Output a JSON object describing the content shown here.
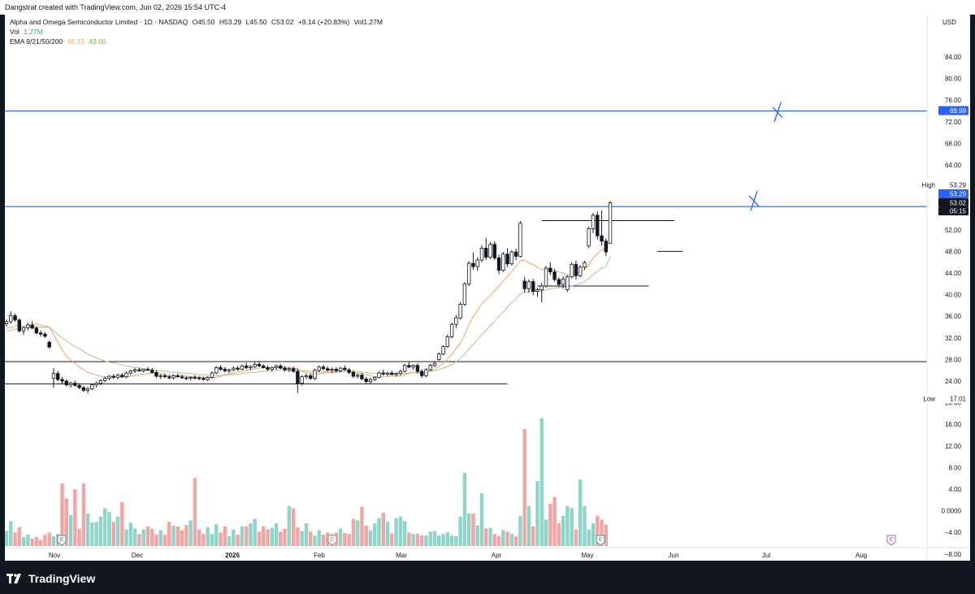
{
  "header": {
    "credit": "Dangstrat created with TradingView.com, Jun 02, 2026 15:54 UTC-4"
  },
  "legend": {
    "symbol": "Alpha and Omega Semiconductor Limited · 1D · NASDAQ",
    "open": "O45.50",
    "high": "H53.29",
    "low": "L45.50",
    "close": "C53.02",
    "change": "+9.14 (+20.83%)",
    "volume": "Vol1.27M",
    "vol_label": "Vol",
    "vol_value": "1.27M",
    "ema_label": "EMA 9/21/50/200",
    "ema9": "46.13",
    "ema21": "43.00"
  },
  "footer": {
    "brand": "TradingView"
  },
  "colors": {
    "up_volume": "#8fd4c8",
    "down_volume": "#f2a5a5",
    "level_line": "#2962ff",
    "ema9": "#f4a261",
    "ema21": "#a8c98c",
    "candle": "#131722"
  },
  "chart_data": {
    "type": "candlestick",
    "symbol": "AOSL",
    "interval": "1D",
    "currency": "USD",
    "price_axis_ticks": [
      "84.00",
      "80.00",
      "76.00",
      "72.00",
      "68.00",
      "64.00",
      "60.00",
      "56.00",
      "52.00",
      "48.00",
      "44.00",
      "40.00",
      "36.00",
      "32.00",
      "28.00",
      "24.00",
      "20.00",
      "16.00",
      "12.00",
      "8.00",
      "4.00",
      "0.0000",
      "−4.00",
      "−8.00"
    ],
    "ylim": [
      -10,
      86
    ],
    "x_ticks": [
      "Nov",
      "Dec",
      "2026",
      "Feb",
      "Mar",
      "Apr",
      "May",
      "Jun",
      "Jul",
      "Aug"
    ],
    "price_labels": {
      "level_upper": "69.99",
      "high_label": "High",
      "high_value": "53.29",
      "level_lower": "53.29",
      "last_price": "53.02",
      "countdown": "05:15",
      "low_label": "Low",
      "low_value": "17.01"
    },
    "horizontal_levels": [
      {
        "price": 69.99,
        "color": "blue"
      },
      {
        "price": 52.3,
        "color": "blue"
      },
      {
        "price": 23.6,
        "color": "black"
      },
      {
        "price": 19.5,
        "color": "black",
        "segment": "Oct-Mar"
      },
      {
        "price": 49.7,
        "color": "black",
        "segment": "May-Jun"
      },
      {
        "price": 44.0,
        "color": "black",
        "segment": "late May"
      },
      {
        "price": 37.6,
        "color": "black",
        "segment": "May-Jun"
      }
    ],
    "candles": [
      [
        30.6,
        31.4,
        30.1,
        31.0
      ],
      [
        31.0,
        32.9,
        30.6,
        32.1
      ],
      [
        32.1,
        32.5,
        31.0,
        31.3
      ],
      [
        31.3,
        31.6,
        29.0,
        29.3
      ],
      [
        29.3,
        30.1,
        28.6,
        29.9
      ],
      [
        29.9,
        30.8,
        29.4,
        30.4
      ],
      [
        30.4,
        31.1,
        29.6,
        29.8
      ],
      [
        29.8,
        30.2,
        28.6,
        28.9
      ],
      [
        28.9,
        29.4,
        28.3,
        28.7
      ],
      [
        28.7,
        29.1,
        28.0,
        28.3
      ],
      [
        27.2,
        27.5,
        26.0,
        26.3
      ],
      [
        20.5,
        22.4,
        18.8,
        21.4
      ],
      [
        21.4,
        21.9,
        20.0,
        20.3
      ],
      [
        20.3,
        20.8,
        19.5,
        20.0
      ],
      [
        20.0,
        20.3,
        19.0,
        19.3
      ],
      [
        19.3,
        19.9,
        18.8,
        19.6
      ],
      [
        19.6,
        20.1,
        19.0,
        19.2
      ],
      [
        19.2,
        19.6,
        18.5,
        18.8
      ],
      [
        18.8,
        19.1,
        18.0,
        18.3
      ],
      [
        18.3,
        18.9,
        17.8,
        18.6
      ],
      [
        18.6,
        19.5,
        18.3,
        19.3
      ],
      [
        19.3,
        19.9,
        18.8,
        19.6
      ],
      [
        19.6,
        20.4,
        19.2,
        20.1
      ],
      [
        20.1,
        20.8,
        19.8,
        20.5
      ],
      [
        20.5,
        21.1,
        20.2,
        20.9
      ],
      [
        20.9,
        21.3,
        20.4,
        20.7
      ],
      [
        20.7,
        21.4,
        20.3,
        21.1
      ],
      [
        21.1,
        21.5,
        20.6,
        20.8
      ],
      [
        20.8,
        21.8,
        20.5,
        21.5
      ],
      [
        21.5,
        22.1,
        21.1,
        21.9
      ],
      [
        21.9,
        22.4,
        21.5,
        22.1
      ],
      [
        22.1,
        22.5,
        21.7,
        21.9
      ],
      [
        21.9,
        22.3,
        21.6,
        22.2
      ],
      [
        22.2,
        22.6,
        21.9,
        22.0
      ],
      [
        22.0,
        22.4,
        21.4,
        21.6
      ],
      [
        21.6,
        22.0,
        20.6,
        20.9
      ],
      [
        20.9,
        21.3,
        20.4,
        21.0
      ],
      [
        21.0,
        21.4,
        20.6,
        20.8
      ],
      [
        20.8,
        21.1,
        20.3,
        20.6
      ],
      [
        20.6,
        21.2,
        20.3,
        21.0
      ],
      [
        21.0,
        21.4,
        20.6,
        20.8
      ],
      [
        20.8,
        21.2,
        20.4,
        20.6
      ],
      [
        20.6,
        20.9,
        20.2,
        20.5
      ],
      [
        20.5,
        20.9,
        20.1,
        20.7
      ],
      [
        20.7,
        21.1,
        20.3,
        20.6
      ],
      [
        20.6,
        20.9,
        20.2,
        20.5
      ],
      [
        20.5,
        20.8,
        20.1,
        20.3
      ],
      [
        20.3,
        20.9,
        20.0,
        20.7
      ],
      [
        20.7,
        21.8,
        20.5,
        21.5
      ],
      [
        21.5,
        22.8,
        21.3,
        22.5
      ],
      [
        22.5,
        22.9,
        21.9,
        22.2
      ],
      [
        22.2,
        22.6,
        21.6,
        21.9
      ],
      [
        21.9,
        22.3,
        21.5,
        22.1
      ],
      [
        22.1,
        22.7,
        21.8,
        22.4
      ],
      [
        22.4,
        22.8,
        21.9,
        22.2
      ],
      [
        22.2,
        23.1,
        22.0,
        22.8
      ],
      [
        22.8,
        23.4,
        22.2,
        22.5
      ],
      [
        22.5,
        22.9,
        22.0,
        22.7
      ],
      [
        22.7,
        23.5,
        22.4,
        23.1
      ],
      [
        23.1,
        23.6,
        22.6,
        22.8
      ],
      [
        22.8,
        23.2,
        22.3,
        22.5
      ],
      [
        22.5,
        22.9,
        21.9,
        22.2
      ],
      [
        22.2,
        22.7,
        21.8,
        22.5
      ],
      [
        22.5,
        23.1,
        22.1,
        22.8
      ],
      [
        22.8,
        23.2,
        22.2,
        22.4
      ],
      [
        22.4,
        22.8,
        21.8,
        22.1
      ],
      [
        22.1,
        22.6,
        21.7,
        22.3
      ],
      [
        22.3,
        22.7,
        21.6,
        21.8
      ],
      [
        21.8,
        22.3,
        17.8,
        19.6
      ],
      [
        19.6,
        21.1,
        19.2,
        20.8
      ],
      [
        20.8,
        21.4,
        20.4,
        21.0
      ],
      [
        21.0,
        21.4,
        20.2,
        20.5
      ],
      [
        20.5,
        22.3,
        20.2,
        22.0
      ],
      [
        22.0,
        22.9,
        21.6,
        22.6
      ],
      [
        22.6,
        23.0,
        22.0,
        22.3
      ],
      [
        22.3,
        22.7,
        21.8,
        22.0
      ],
      [
        22.0,
        22.5,
        21.5,
        22.2
      ],
      [
        22.2,
        22.6,
        21.7,
        21.9
      ],
      [
        21.9,
        22.6,
        21.6,
        22.4
      ],
      [
        22.4,
        22.9,
        21.9,
        22.1
      ],
      [
        22.1,
        22.4,
        21.3,
        21.6
      ],
      [
        21.6,
        22.0,
        20.6,
        20.9
      ],
      [
        20.9,
        21.4,
        20.5,
        21.1
      ],
      [
        21.1,
        21.5,
        20.2,
        20.4
      ],
      [
        20.4,
        20.8,
        19.6,
        19.9
      ],
      [
        19.9,
        20.6,
        19.5,
        20.3
      ],
      [
        20.3,
        20.9,
        20.0,
        20.7
      ],
      [
        20.7,
        21.8,
        20.5,
        21.5
      ],
      [
        21.5,
        22.1,
        21.0,
        21.3
      ],
      [
        21.3,
        21.7,
        20.9,
        21.5
      ],
      [
        21.5,
        21.9,
        21.1,
        21.2
      ],
      [
        21.2,
        21.6,
        20.8,
        21.4
      ],
      [
        21.4,
        22.1,
        21.1,
        21.8
      ],
      [
        21.8,
        23.2,
        21.6,
        22.9
      ],
      [
        22.9,
        23.5,
        22.4,
        22.6
      ],
      [
        22.6,
        23.1,
        22.1,
        22.9
      ],
      [
        22.9,
        23.3,
        21.4,
        21.8
      ],
      [
        21.8,
        22.2,
        20.6,
        21.0
      ],
      [
        21.0,
        22.4,
        20.7,
        22.1
      ],
      [
        22.1,
        23.2,
        21.9,
        22.9
      ],
      [
        22.9,
        23.6,
        22.6,
        23.3
      ],
      [
        24.0,
        25.3,
        23.8,
        25.0
      ],
      [
        25.0,
        26.6,
        24.8,
        26.4
      ],
      [
        26.4,
        28.6,
        26.2,
        28.2
      ],
      [
        28.2,
        30.8,
        27.9,
        30.5
      ],
      [
        30.5,
        32.2,
        29.8,
        31.7
      ],
      [
        31.7,
        34.6,
        31.4,
        34.2
      ],
      [
        34.2,
        38.3,
        33.9,
        38.0
      ],
      [
        38.0,
        42.2,
        37.6,
        41.8
      ],
      [
        41.8,
        43.8,
        40.6,
        41.2
      ],
      [
        41.2,
        42.9,
        40.4,
        42.4
      ],
      [
        42.4,
        45.2,
        42.0,
        44.6
      ],
      [
        44.6,
        46.5,
        42.4,
        42.9
      ],
      [
        42.9,
        45.7,
        42.6,
        45.3
      ],
      [
        45.3,
        45.9,
        42.4,
        42.8
      ],
      [
        42.8,
        43.4,
        39.8,
        40.5
      ],
      [
        40.5,
        43.9,
        40.2,
        43.5
      ],
      [
        43.5,
        44.6,
        41.1,
        41.7
      ],
      [
        41.7,
        44.2,
        41.4,
        43.9
      ],
      [
        43.9,
        44.5,
        42.4,
        43.1
      ],
      [
        43.1,
        49.6,
        42.9,
        49.2
      ],
      [
        38.5,
        39.3,
        36.4,
        37.1
      ],
      [
        37.1,
        38.8,
        36.4,
        38.4
      ],
      [
        38.4,
        38.9,
        35.9,
        36.6
      ],
      [
        36.6,
        37.3,
        35.6,
        36.9
      ],
      [
        36.9,
        38.2,
        34.6,
        37.6
      ],
      [
        37.6,
        41.3,
        37.3,
        40.9
      ],
      [
        40.9,
        42.0,
        39.6,
        40.2
      ],
      [
        40.2,
        40.8,
        38.4,
        38.8
      ],
      [
        38.8,
        39.2,
        37.4,
        37.9
      ],
      [
        37.9,
        39.4,
        37.1,
        38.9
      ],
      [
        36.9,
        39.6,
        36.5,
        39.3
      ],
      [
        39.3,
        42.0,
        39.0,
        41.6
      ],
      [
        41.6,
        42.3,
        38.8,
        39.5
      ],
      [
        39.5,
        41.4,
        39.2,
        41.1
      ],
      [
        41.1,
        42.3,
        40.6,
        41.9
      ],
      [
        45.0,
        48.6,
        44.6,
        48.2
      ],
      [
        48.2,
        51.1,
        47.4,
        50.7
      ],
      [
        50.7,
        51.4,
        46.2,
        46.9
      ],
      [
        46.9,
        51.6,
        45.1,
        45.9
      ],
      [
        45.9,
        46.4,
        43.2,
        43.9
      ],
      [
        45.5,
        53.29,
        45.5,
        53.02
      ]
    ],
    "volume": [
      2.0,
      3.3,
      1.8,
      2.5,
      1.2,
      1.5,
      1.0,
      1.2,
      0.8,
      1.5,
      1.8,
      1.3,
      1.6,
      8.3,
      6.3,
      4.1,
      7.5,
      2.3,
      8.3,
      4.3,
      3.1,
      3.2,
      3.9,
      5.0,
      4.5,
      3.2,
      3.9,
      5.8,
      2.2,
      3.1,
      2.3,
      1.6,
      2.2,
      2.6,
      2.3,
      1.5,
      2.1,
      1.5,
      3.2,
      2.7,
      2.6,
      2.1,
      2.8,
      3.4,
      9.0,
      2.2,
      1.6,
      2.5,
      1.6,
      2.9,
      1.8,
      2.6,
      1.3,
      2.2,
      1.5,
      2.6,
      2.6,
      3.0,
      3.6,
      1.9,
      2.6,
      2.2,
      2.4,
      3.0,
      1.9,
      2.3,
      5.3,
      5.0,
      2.5,
      2.0,
      3.0,
      1.9,
      1.4,
      2.1,
      1.5,
      1.8,
      1.6,
      1.8,
      2.3,
      1.7,
      1.6,
      3.6,
      3.4,
      5.2,
      2.7,
      2.1,
      3.0,
      3.7,
      4.4,
      3.2,
      1.7,
      3.7,
      3.9,
      3.3,
      1.8,
      1.6,
      1.6,
      1.4,
      1.4,
      1.9,
      2.0,
      1.4,
      1.6,
      1.8,
      1.4,
      1.3,
      3.9,
      9.7,
      4.3,
      4.3,
      2.7,
      7.0,
      2.3,
      2.4,
      1.6,
      1.3,
      2.1,
      1.9,
      1.6,
      1.3,
      4.0,
      15.5,
      5.3,
      2.6,
      8.6,
      16.9,
      3.5,
      5.6,
      6.5,
      3.0,
      4.0,
      5.3,
      5.0,
      2.2,
      8.8,
      5.3,
      2.2,
      3.0,
      4.0,
      3.5,
      2.8
    ],
    "ema9": [
      29.8,
      29.9,
      30.2,
      30.3,
      30.1,
      30.2,
      30.4,
      30.6,
      30.4,
      30.2,
      30.0,
      28.6,
      27.2,
      25.8,
      24.6,
      23.9,
      23.3,
      22.6,
      22.1,
      21.6,
      21.4,
      21.1,
      20.9,
      20.8,
      20.8,
      20.8,
      20.8,
      20.8,
      20.8,
      20.9,
      21.0,
      21.2,
      21.3,
      21.4,
      21.5,
      21.4,
      21.4,
      21.2,
      21.1,
      21.1,
      21.0,
      21.0,
      20.9,
      20.8,
      20.8,
      20.7,
      20.7,
      20.6,
      20.6,
      20.7,
      20.9,
      21.2,
      21.3,
      21.5,
      21.7,
      21.8,
      22.0,
      22.1,
      22.3,
      22.4,
      22.5,
      22.5,
      22.5,
      22.5,
      22.5,
      22.5,
      22.4,
      22.4,
      22.3,
      21.8,
      21.6,
      21.4,
      21.2,
      21.3,
      21.5,
      21.6,
      21.6,
      21.6,
      21.8,
      21.8,
      21.8,
      21.7,
      21.5,
      21.4,
      21.2,
      21.0,
      20.8,
      20.8,
      20.8,
      20.8,
      20.9,
      20.9,
      21.0,
      21.2,
      21.4,
      21.6,
      21.6,
      21.5,
      21.6,
      21.9,
      22.2,
      22.7,
      23.3,
      24.0,
      25.0,
      26.0,
      27.0,
      28.6,
      30.5,
      31.9,
      33.1,
      34.3,
      35.1,
      35.9,
      36.7,
      37.6,
      38.5,
      39.4,
      40.3,
      41.2,
      42.3,
      42.4,
      41.9,
      41.6,
      41.1,
      40.6,
      40.6,
      40.7,
      40.5,
      40.2,
      40.0,
      39.6,
      39.7,
      39.9,
      40.3,
      40.6,
      41.6,
      42.8,
      43.6,
      44.4,
      44.4,
      46.13
    ],
    "ema21": [
      29.3,
      29.4,
      29.6,
      29.7,
      29.8,
      29.9,
      30.0,
      30.0,
      30.0,
      30.0,
      30.0,
      29.3,
      28.6,
      28.0,
      27.5,
      26.9,
      26.4,
      26.0,
      25.5,
      25.0,
      24.6,
      24.3,
      24.0,
      23.7,
      23.5,
      23.4,
      23.2,
      23.0,
      22.8,
      22.7,
      22.5,
      22.4,
      22.3,
      22.2,
      22.1,
      22.0,
      21.9,
      21.8,
      21.7,
      21.6,
      21.6,
      21.5,
      21.5,
      21.4,
      21.3,
      21.2,
      21.2,
      21.1,
      21.0,
      21.0,
      21.0,
      21.1,
      21.2,
      21.2,
      21.3,
      21.4,
      21.5,
      21.6,
      21.6,
      21.7,
      21.8,
      21.9,
      21.9,
      22.0,
      22.0,
      22.0,
      22.0,
      22.0,
      22.0,
      21.9,
      21.9,
      21.8,
      21.7,
      21.7,
      21.7,
      21.7,
      21.7,
      21.7,
      21.8,
      21.8,
      21.8,
      21.8,
      21.8,
      21.7,
      21.6,
      21.5,
      21.4,
      21.4,
      21.4,
      21.3,
      21.4,
      21.4,
      21.4,
      21.4,
      21.5,
      21.6,
      21.6,
      21.6,
      21.6,
      21.8,
      21.9,
      22.1,
      22.4,
      22.7,
      23.1,
      23.6,
      24.2,
      25.0,
      26.0,
      26.8,
      27.7,
      28.6,
      29.4,
      30.3,
      31.1,
      32.0,
      32.8,
      33.7,
      34.5,
      35.3,
      36.2,
      36.4,
      36.5,
      36.6,
      36.7,
      36.7,
      36.9,
      37.1,
      37.2,
      37.3,
      37.4,
      37.4,
      37.6,
      37.8,
      38.1,
      38.4,
      39.0,
      39.7,
      40.3,
      40.9,
      41.2,
      43.0
    ]
  }
}
